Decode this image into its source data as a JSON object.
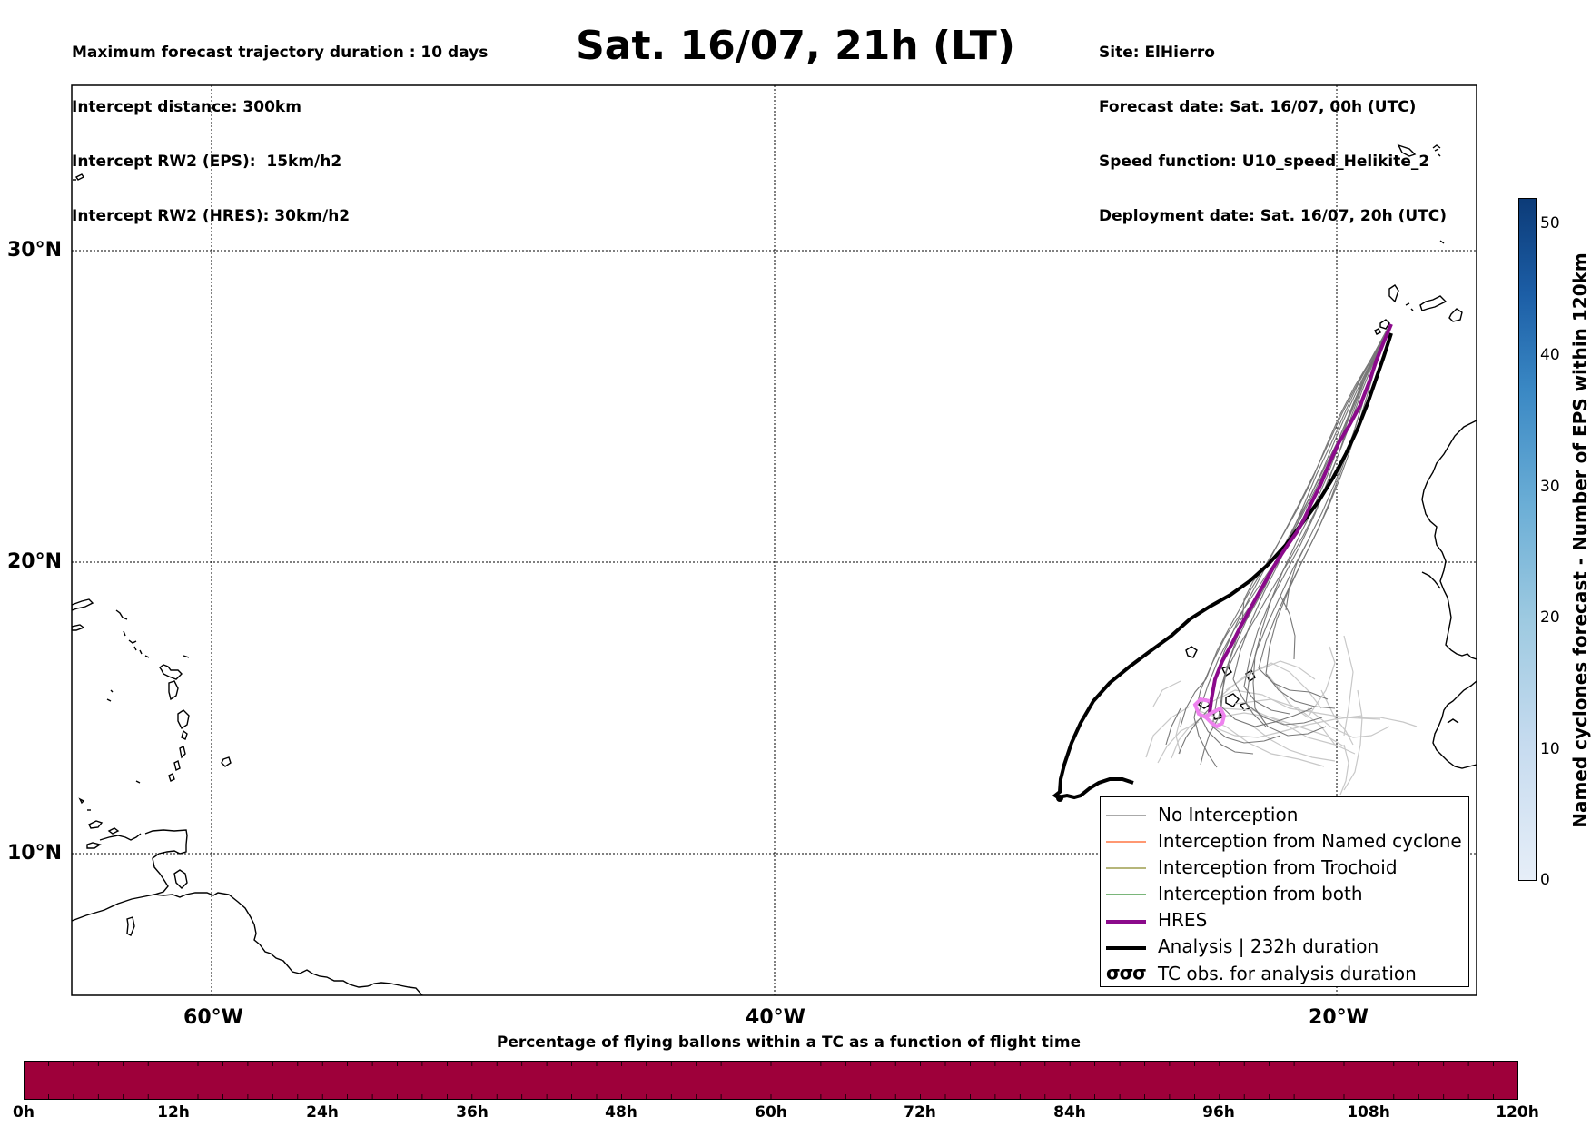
{
  "info_left": {
    "line1": "Maximum forecast trajectory duration : 10 days",
    "line2": "Intercept distance: 300km",
    "line3": "Intercept RW2 (EPS):  15km/h2",
    "line4": "Intercept RW2 (HRES): 30km/h2"
  },
  "title": "Sat. 16/07, 21h (LT)",
  "info_right": {
    "line1": "Site: ElHierro",
    "line2": "Forecast date: Sat. 16/07, 00h (UTC)",
    "line3": "Speed function: U10_speed_Helikite_2",
    "line4": "Deployment date: Sat. 16/07, 20h (UTC)"
  },
  "map": {
    "lat_labels": [
      "30°N",
      "20°N",
      "10°N"
    ],
    "lon_labels": [
      "60°W",
      "40°W",
      "20°W"
    ],
    "gridlines": true,
    "colors": {
      "no_interception": "#777777",
      "named_cyclone": "#ff5a1f",
      "trochoid": "#8a8a2a",
      "both": "#2a8a2a",
      "hres": "#8b0a8b",
      "analysis": "#000000",
      "early_members": "#c8c8c8",
      "hres_loop": "#ee82ee"
    }
  },
  "legend": {
    "items": [
      {
        "label": "No Interception",
        "icon": "thin-gray-line"
      },
      {
        "label": "Interception from Named cyclone",
        "icon": "thin-orange-line"
      },
      {
        "label": "Interception from Trochoid",
        "icon": "thin-olive-line"
      },
      {
        "label": "Interception from both",
        "icon": "thin-green-line"
      },
      {
        "label": "HRES",
        "icon": "thick-purple-line"
      },
      {
        "label": "Analysis | 232h duration",
        "icon": "thick-black-line"
      },
      {
        "label": "TC obs. for analysis duration",
        "icon": "cyclone-symbol-icon",
        "symbol": "σσσ"
      }
    ]
  },
  "colorbar_right": {
    "label": "Named cyclones forecast - Number of EPS within 120km",
    "ticks": [
      "50",
      "40",
      "30",
      "20",
      "10",
      "0"
    ],
    "range": [
      0,
      52
    ],
    "color_low": "#e6eef8",
    "color_high": "#0c3b78"
  },
  "colorbar_bottom": {
    "title": "Percentage of flying ballons within a TC as a function of flight time",
    "ticks": [
      "0h",
      "12h",
      "24h",
      "36h",
      "48h",
      "60h",
      "72h",
      "84h",
      "96h",
      "108h",
      "120h"
    ],
    "fill_color": "#9e003a"
  }
}
